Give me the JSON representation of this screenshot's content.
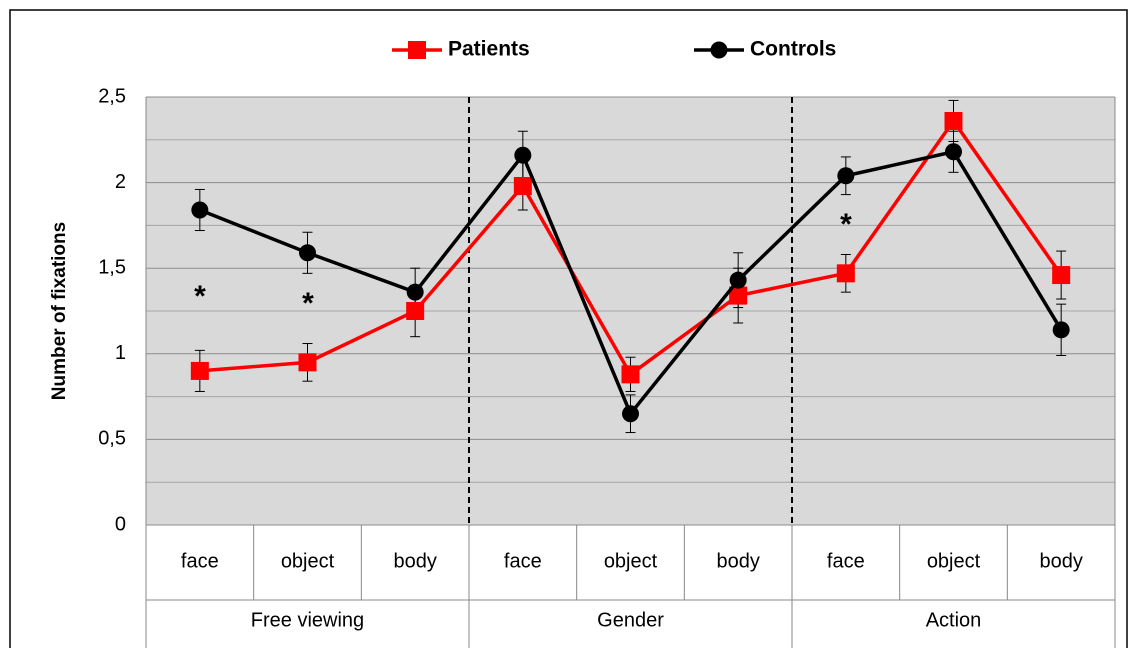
{
  "chart_data": {
    "type": "line",
    "y_label": "Number of fixations",
    "categories": [
      "face",
      "object",
      "body",
      "face",
      "object",
      "body",
      "face",
      "object",
      "body"
    ],
    "groups": [
      "Free viewing",
      "Gender",
      "Action"
    ],
    "series": [
      {
        "name": "Patients",
        "color": "#ff0000",
        "marker": "square",
        "values": [
          0.9,
          0.95,
          1.25,
          1.98,
          0.88,
          1.34,
          1.47,
          2.36,
          1.46
        ],
        "errors": [
          0.12,
          0.11,
          0.15,
          0.14,
          0.1,
          0.16,
          0.11,
          0.12,
          0.14
        ]
      },
      {
        "name": "Controls",
        "color": "#000000",
        "marker": "circle",
        "values": [
          1.84,
          1.59,
          1.36,
          2.16,
          0.65,
          1.43,
          2.04,
          2.18,
          1.14
        ],
        "errors": [
          0.12,
          0.12,
          0.14,
          0.14,
          0.11,
          0.16,
          0.11,
          0.12,
          0.15
        ]
      }
    ],
    "annotations": [
      "*",
      "*",
      "*"
    ],
    "ylim": [
      0,
      2.5
    ],
    "yticks": [
      0,
      {
        "value": 0.5,
        "label": "0,5"
      },
      1,
      {
        "value": 1.5,
        "label": "1,5"
      },
      2,
      {
        "value": 2.5,
        "label": "2,5"
      }
    ],
    "minor_grid": [
      0.25,
      0.75,
      1.25,
      1.75,
      2.25
    ],
    "grid": true
  }
}
